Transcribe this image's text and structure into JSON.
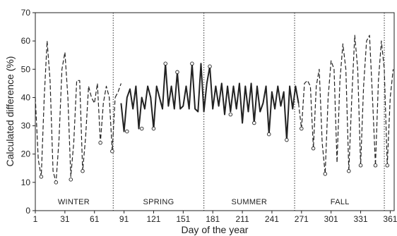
{
  "chart_data": {
    "type": "line",
    "title": "",
    "xlabel": "Day of the year",
    "ylabel": "Calculated difference (%)",
    "xlim": [
      1,
      365
    ],
    "ylim": [
      0,
      70
    ],
    "xticks": [
      1,
      31,
      61,
      91,
      121,
      151,
      181,
      211,
      241,
      271,
      301,
      331,
      361
    ],
    "yticks": [
      0,
      10,
      20,
      30,
      40,
      50,
      60,
      70
    ],
    "grid": false,
    "season_boundaries": [
      80,
      172,
      264,
      355
    ],
    "seasons": [
      {
        "label": "WINTER",
        "x": 40
      },
      {
        "label": "SPRING",
        "x": 126
      },
      {
        "label": "SUMMER",
        "x": 218
      },
      {
        "label": "FALL",
        "x": 310
      }
    ],
    "series": [
      {
        "style": "dashed",
        "x": [
          1,
          4,
          7,
          10,
          13,
          16,
          19,
          22,
          25,
          28,
          31,
          34,
          37,
          40,
          43,
          46,
          49,
          52,
          55,
          58,
          61,
          64,
          67,
          70,
          73,
          76,
          79,
          82
        ],
        "y": [
          40,
          18,
          12,
          40,
          60,
          46,
          14,
          10,
          25,
          50,
          56,
          40,
          12,
          24,
          46,
          46,
          14,
          26,
          44,
          40,
          38,
          45,
          24,
          38,
          44,
          40,
          21,
          40
        ]
      },
      {
        "style": "dashed",
        "x": [
          82,
          85,
          88
        ],
        "y": [
          40,
          42,
          45
        ]
      },
      {
        "style": "solid",
        "x": [
          88,
          91,
          94,
          97,
          100,
          103,
          106,
          109,
          112,
          115,
          118,
          121,
          124,
          127,
          130,
          133,
          136,
          139,
          142,
          145,
          148,
          151,
          154,
          157,
          160,
          163,
          166,
          169,
          172,
          175,
          178,
          181,
          184,
          187,
          190,
          193,
          196,
          199,
          202,
          205,
          208,
          211,
          214,
          217,
          220,
          223,
          226,
          229,
          232,
          235,
          238,
          241,
          244,
          247,
          250,
          253,
          256,
          259,
          262,
          265,
          268
        ],
        "y": [
          38,
          28,
          40,
          43,
          36,
          44,
          29,
          40,
          36,
          44,
          40,
          29,
          44,
          40,
          36,
          52,
          37,
          44,
          36,
          49,
          36,
          37,
          44,
          36,
          52,
          36,
          35,
          52,
          35,
          45,
          51,
          36,
          44,
          37,
          45,
          34,
          44,
          35,
          44,
          36,
          45,
          31,
          44,
          35,
          45,
          31,
          44,
          35,
          38,
          44,
          27,
          42,
          36,
          44,
          37,
          42,
          25,
          44,
          36,
          44,
          38
        ]
      },
      {
        "style": "dashed",
        "x": [
          268,
          271,
          274,
          277,
          280,
          283,
          286,
          289,
          292,
          295,
          298,
          301,
          304,
          307,
          310,
          313,
          316,
          319,
          322,
          325,
          328,
          331,
          334,
          337,
          340,
          343,
          346,
          349,
          352,
          355,
          358,
          361,
          364
        ],
        "y": [
          38,
          29,
          45,
          46,
          44,
          22,
          44,
          50,
          24,
          13,
          40,
          53,
          50,
          17,
          46,
          59,
          50,
          14,
          40,
          62,
          50,
          16,
          44,
          60,
          62,
          40,
          16,
          46,
          60,
          50,
          16,
          40,
          50
        ]
      }
    ],
    "markers": [
      {
        "x": 7,
        "y": 12
      },
      {
        "x": 22,
        "y": 10
      },
      {
        "x": 37,
        "y": 11
      },
      {
        "x": 49,
        "y": 14
      },
      {
        "x": 67,
        "y": 24
      },
      {
        "x": 79,
        "y": 21
      },
      {
        "x": 94,
        "y": 28
      },
      {
        "x": 109,
        "y": 29
      },
      {
        "x": 121,
        "y": 29
      },
      {
        "x": 133,
        "y": 52
      },
      {
        "x": 145,
        "y": 49
      },
      {
        "x": 160,
        "y": 52
      },
      {
        "x": 178,
        "y": 51
      },
      {
        "x": 199,
        "y": 34
      },
      {
        "x": 223,
        "y": 31
      },
      {
        "x": 238,
        "y": 27
      },
      {
        "x": 256,
        "y": 25
      },
      {
        "x": 271,
        "y": 29
      },
      {
        "x": 283,
        "y": 22
      },
      {
        "x": 295,
        "y": 13
      },
      {
        "x": 319,
        "y": 14
      },
      {
        "x": 331,
        "y": 16
      },
      {
        "x": 346,
        "y": 16
      },
      {
        "x": 358,
        "y": 16
      }
    ]
  }
}
